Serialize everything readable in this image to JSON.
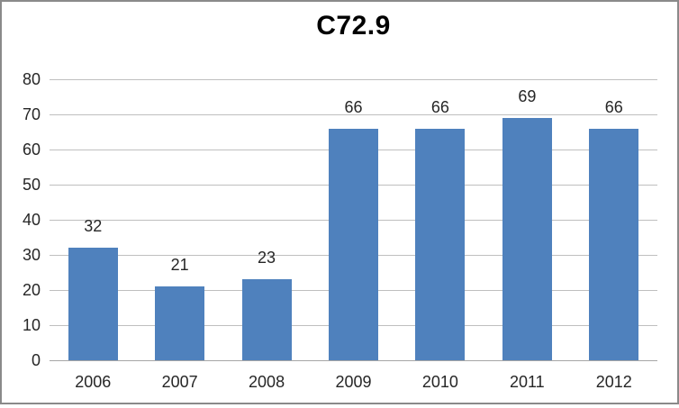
{
  "chart_data": {
    "type": "bar",
    "title": "C72.9",
    "categories": [
      "2006",
      "2007",
      "2008",
      "2009",
      "2010",
      "2011",
      "2012"
    ],
    "values": [
      32,
      21,
      23,
      66,
      66,
      69,
      66
    ],
    "data_labels": [
      "32",
      "21",
      "23",
      "66",
      "66",
      "69",
      "66"
    ],
    "xlabel": "",
    "ylabel": "",
    "ylim": [
      0,
      80
    ],
    "yticks": [
      0,
      10,
      20,
      30,
      40,
      50,
      60,
      70,
      80
    ],
    "ytick_labels": [
      "0",
      "10",
      "20",
      "30",
      "40",
      "50",
      "60",
      "70",
      "80"
    ],
    "grid": true,
    "legend": "none",
    "colors": {
      "bar": "#4F81BD",
      "gridline": "#BFBFBF",
      "axis_line": "#A6A6A6",
      "title_text": "#000000",
      "label_text": "#262626",
      "frame_border": "#8a8a8a",
      "background": "#ffffff"
    }
  }
}
